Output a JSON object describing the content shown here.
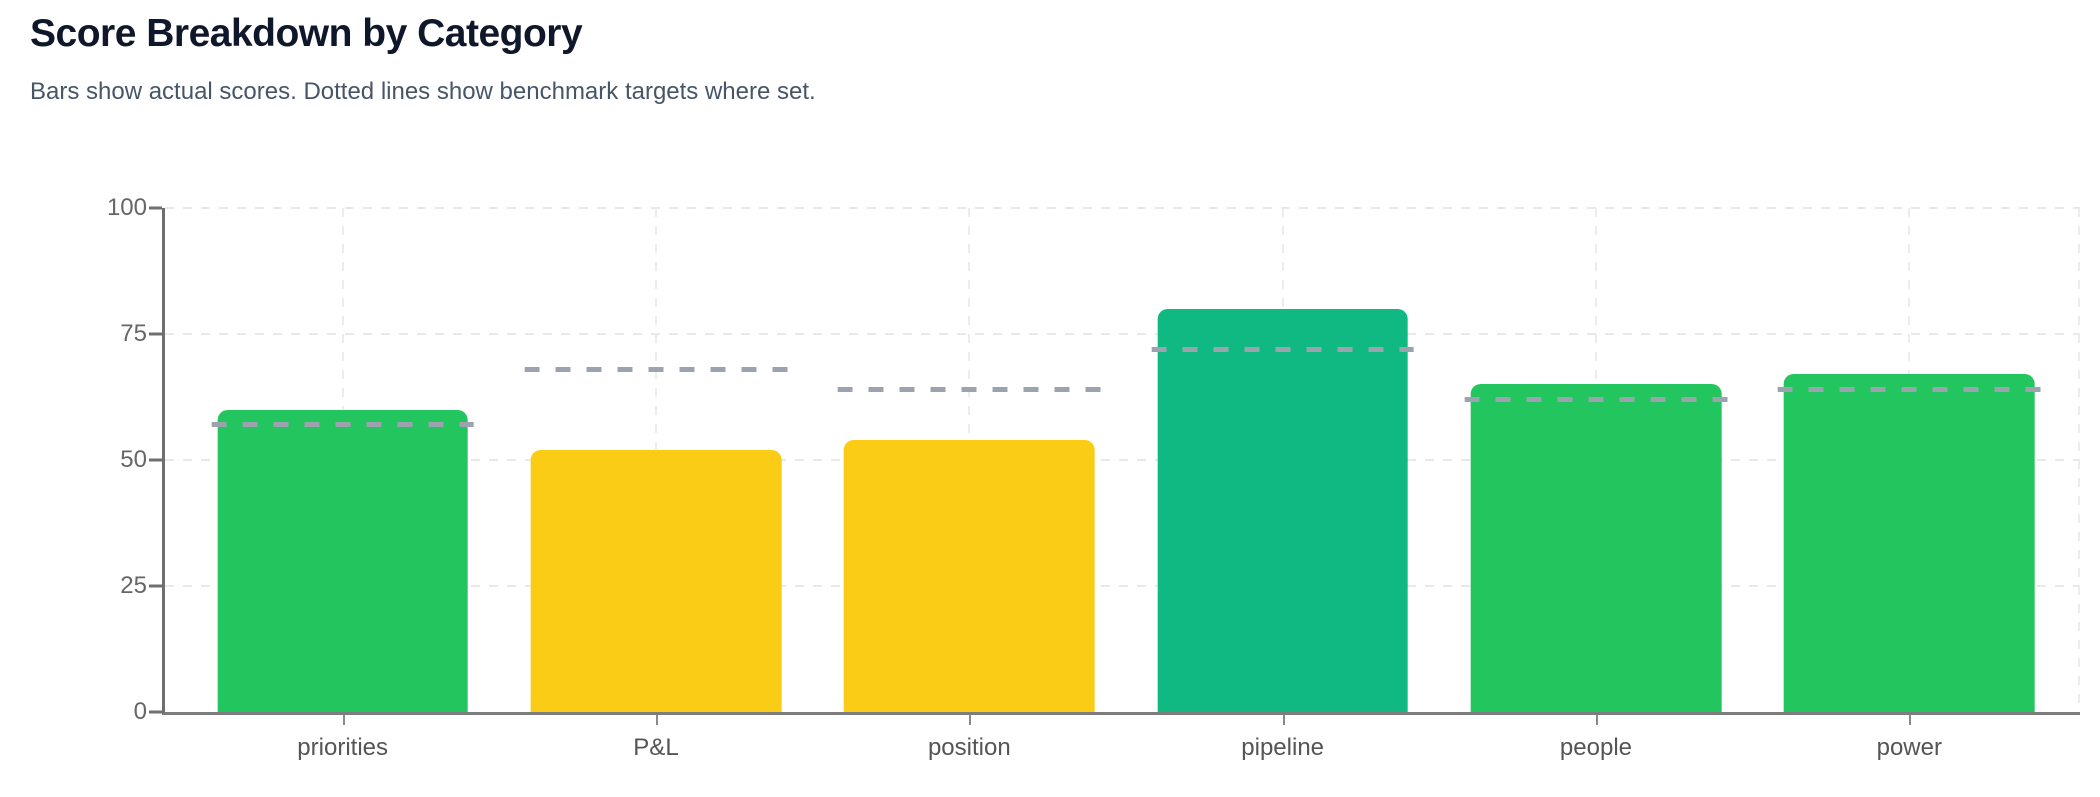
{
  "header": {
    "title": "Score Breakdown by Category",
    "subtitle": "Bars show actual scores. Dotted lines show benchmark targets where set."
  },
  "colors": {
    "title_text": "#0f172a",
    "subtitle_text": "#475569",
    "axis_line": "#6f6f6f",
    "tick_text": "#666666",
    "grid_line": "#e9e9e9",
    "benchmark_line": "#9ca3af",
    "bar_green": "#22c55e",
    "bar_teal": "#10b981",
    "bar_yellow": "#facc15"
  },
  "chart_data": {
    "type": "bar",
    "title": "Score Breakdown by Category",
    "subtitle": "Bars show actual scores. Dotted lines show benchmark targets where set.",
    "categories": [
      "priorities",
      "P&L",
      "position",
      "pipeline",
      "people",
      "power"
    ],
    "series": [
      {
        "name": "actual score",
        "values": [
          60,
          52,
          54,
          80,
          65,
          67
        ]
      },
      {
        "name": "benchmark target",
        "values": [
          57,
          68,
          64,
          72,
          62,
          64
        ]
      }
    ],
    "bar_colors": [
      "#22c55e",
      "#facc15",
      "#facc15",
      "#10b981",
      "#22c55e",
      "#22c55e"
    ],
    "benchmark_style": {
      "line": "dashed",
      "color": "#9ca3af"
    },
    "xlabel": "",
    "ylabel": "",
    "ylim": [
      0,
      100
    ],
    "yticks": [
      0,
      25,
      50,
      75,
      100
    ],
    "grid": true,
    "legend": false
  }
}
